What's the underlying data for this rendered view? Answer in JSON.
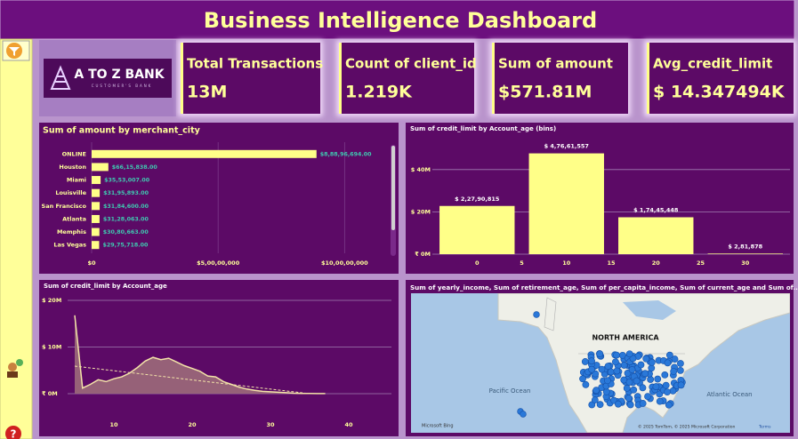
{
  "header": {
    "title": "Business Intelligence Dashboard"
  },
  "logo": {
    "name": "A TO Z BANK",
    "tagline": "CUSTOMER'S BANK"
  },
  "cards": [
    {
      "label": "Total Transactions",
      "value": "13M"
    },
    {
      "label": "Count of client_id",
      "value": "1.219K"
    },
    {
      "label": "Sum of amount",
      "value": "$571.81M"
    },
    {
      "label": "Avg_credit_limit",
      "value": "$ 14.347494K"
    }
  ],
  "chart_data": [
    {
      "type": "hbar",
      "title": "Sum of amount by merchant_city",
      "categories": [
        "ONLINE",
        "Houston",
        "Miami",
        "Louisville",
        "San Francisco",
        "Atlanta",
        "Memphis",
        "Las Vegas"
      ],
      "values": [
        88896694,
        6615838,
        3553007,
        3195893,
        3184600,
        3128063,
        3080663,
        2975718
      ],
      "value_labels": [
        "$8,88,96,694.00",
        "$66,15,838.00",
        "$35,53,007.00",
        "$31,95,893.00",
        "$31,84,600.00",
        "$31,28,063.00",
        "$30,80,663.00",
        "$29,75,718.00"
      ],
      "color": "#ffff88",
      "xlim": [
        0,
        115000000
      ],
      "xticks": [
        {
          "value": 0,
          "label": "$0"
        },
        {
          "value": 50000000,
          "label": "$5,00,00,000"
        },
        {
          "value": 100000000,
          "label": "$10,00,00,000"
        }
      ],
      "grid": true
    },
    {
      "type": "bar",
      "title": "Sum of credit_limit by Account_age (bins)",
      "x": [
        0,
        10,
        20,
        30
      ],
      "values": [
        22790815,
        47661557,
        17445448,
        281878
      ],
      "value_labels": [
        "$ 2,27,90,815",
        "$ 4,76,61,557",
        "$ 1,74,45,448",
        "$ 2,81,878"
      ],
      "color": "#ffff88",
      "xlim": [
        -5,
        35
      ],
      "xticks": [
        0,
        5,
        10,
        15,
        20,
        25,
        30
      ],
      "ylim": [
        0,
        50000000
      ],
      "yticks": [
        {
          "value": 0,
          "label": "₹ 0M"
        },
        {
          "value": 20000000,
          "label": "$ 20M"
        },
        {
          "value": 40000000,
          "label": "$ 40M"
        }
      ],
      "grid": true
    },
    {
      "type": "area",
      "title": "Sum of credit_limit by Account_age",
      "x": [
        5,
        6,
        7,
        8,
        9,
        10,
        11,
        12,
        13,
        14,
        15,
        16,
        17,
        18,
        19,
        20,
        21,
        22,
        23,
        24,
        25,
        26,
        27,
        28,
        29,
        30,
        31,
        32,
        33,
        34,
        35,
        36,
        37
      ],
      "values": [
        16800000,
        1200000,
        2000000,
        3000000,
        2600000,
        3200000,
        3600000,
        4400000,
        5600000,
        7000000,
        7800000,
        7300000,
        7600000,
        6800000,
        6000000,
        5400000,
        4800000,
        3800000,
        3600000,
        2600000,
        2000000,
        1400000,
        1000000,
        700000,
        500000,
        400000,
        300000,
        200000,
        100000,
        50000,
        50000,
        20000,
        10000
      ],
      "color": "#9c6a7a",
      "line_color": "#f3e3a8",
      "xlim": [
        2,
        45
      ],
      "xticks": [
        10,
        20,
        30,
        40
      ],
      "ylim": [
        0,
        20000000
      ],
      "yticks": [
        {
          "value": 0,
          "label": "₹ 0M"
        },
        {
          "value": 10000000,
          "label": "$ 10M"
        },
        {
          "value": 20000000,
          "label": "$ 20M"
        }
      ],
      "grid": true
    }
  ],
  "map": {
    "title": "Sum of yearly_income, Sum of retirement_age, Sum of per_capita_income, Sum of current_age and Sum of...",
    "continent": "NORTH AMERICA",
    "pacific": "Pacific Ocean",
    "atlantic": "Atlantic Ocean",
    "brand": "Microsoft Bing",
    "attribution": "© 2025 TomTom, © 2025 Microsoft Corporation",
    "terms": "Terms"
  }
}
